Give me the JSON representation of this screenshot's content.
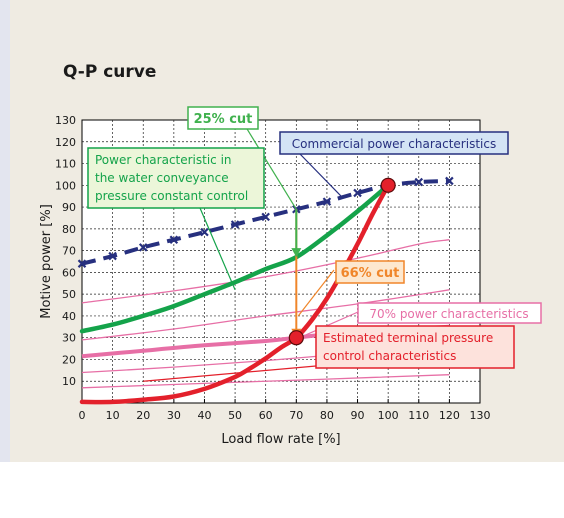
{
  "title": "Q-P curve",
  "colors": {
    "background": "#efebe2",
    "plot_background": "#ffffff",
    "commercial": "#27307f",
    "water_constant": "#14a34a",
    "terminal": "#e3202b",
    "power_curves": "#e76fa6",
    "cut_arrow": "#f0862a",
    "green_cut_arrow": "#40b14e"
  },
  "chart_data": {
    "type": "line",
    "xlabel": "Load flow rate [%]",
    "ylabel": "Motive power [%]",
    "xlim": [
      0,
      130
    ],
    "ylim": [
      0,
      130
    ],
    "xticks": [
      0,
      10,
      20,
      30,
      40,
      50,
      60,
      70,
      80,
      90,
      100,
      110,
      120,
      130
    ],
    "yticks": [
      10,
      20,
      30,
      40,
      50,
      60,
      70,
      80,
      90,
      100,
      110,
      120,
      130
    ],
    "grid": true,
    "series": [
      {
        "name": "Commercial power characteristics",
        "style": "dashed-with-x-markers",
        "x": [
          0,
          10,
          20,
          30,
          40,
          50,
          60,
          70,
          80,
          90,
          100,
          110,
          120
        ],
        "y": [
          64,
          67.5,
          71.5,
          75,
          78.5,
          82,
          85.5,
          89,
          92.5,
          96.5,
          100,
          101.5,
          102
        ]
      },
      {
        "name": "Power characteristic in the water conveyance pressure constant control",
        "style": "solid-thick",
        "x": [
          0,
          10,
          20,
          30,
          40,
          50,
          60,
          70,
          80,
          90,
          100
        ],
        "y": [
          33,
          36,
          40,
          44.5,
          50,
          55.5,
          61.5,
          67,
          77,
          88,
          100
        ]
      },
      {
        "name": "Estimated terminal pressure control characteristics",
        "style": "solid-thick",
        "x": [
          0,
          10,
          20,
          30,
          40,
          50,
          55,
          60,
          65,
          70,
          75,
          80,
          85,
          90,
          95,
          100
        ],
        "y": [
          0.5,
          0.5,
          1.5,
          3,
          6.5,
          12,
          16,
          20.5,
          25.5,
          30,
          38,
          48,
          60,
          73,
          87,
          100
        ]
      },
      {
        "name": "70% power characteristics",
        "style": "thick-pink",
        "x": [
          0,
          20,
          40,
          60,
          70,
          80,
          100,
          120
        ],
        "y": [
          21.5,
          24,
          26.5,
          28.5,
          30,
          31.5,
          33.5,
          35
        ]
      }
    ],
    "thin_power_curves": [
      {
        "x": [
          0,
          30,
          60,
          90,
          110,
          120
        ],
        "y": [
          46,
          51.5,
          58,
          66.5,
          73,
          75
        ]
      },
      {
        "x": [
          0,
          30,
          60,
          90,
          120
        ],
        "y": [
          29,
          34,
          40,
          45.5,
          52
        ]
      },
      {
        "x": [
          0,
          30,
          60,
          90,
          120
        ],
        "y": [
          14,
          16.5,
          19.5,
          23,
          27
        ]
      },
      {
        "x": [
          0,
          40,
          80,
          120
        ],
        "y": [
          7,
          9,
          11,
          13
        ]
      }
    ],
    "markers": [
      {
        "x": 100,
        "y": 100
      },
      {
        "x": 70,
        "y": 30
      }
    ],
    "cuts": {
      "green": {
        "x": 70,
        "from": 89,
        "to": 67
      },
      "orange": {
        "x": 70,
        "from": 89,
        "to": 30
      }
    },
    "annotations": {
      "cut25": "25% cut",
      "commercial": "Commercial power characteristics",
      "water_lines": [
        "Power characteristic in",
        "the water conveyance",
        "pressure constant control"
      ],
      "cut66": "66% cut",
      "power70": "70% power characteristics",
      "terminal_lines": [
        "Estimated terminal pressure",
        "control characteristics"
      ]
    }
  }
}
